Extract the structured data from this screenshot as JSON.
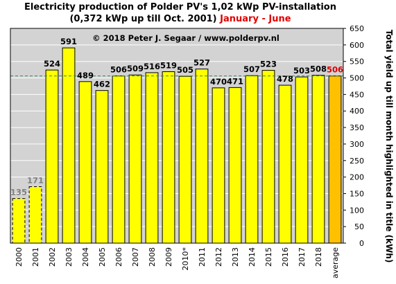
{
  "title": {
    "line1": "Electricity production  of Polder  PV's 1,02 kWp PV-installation",
    "line2_main": "(0,372 kWp up till Oct. 2001)",
    "line2_accent": "January - June"
  },
  "colors": {
    "plot_background": "#d3d3d3",
    "bar_fill": "#ffff00",
    "average_bar_fill": "#ffc000",
    "dim_label": "#808080",
    "average_label": "#e00000",
    "reference_line": "#2e8b57"
  },
  "chart_data": {
    "type": "bar",
    "copyright": "© 2018 Peter J. Segaar / www.polderpv.nl",
    "categories": [
      "2000",
      "2001",
      "2002",
      "2003",
      "2004",
      "2005",
      "2006",
      "2007",
      "2008",
      "2009",
      "2010*",
      "2011",
      "2012",
      "2013",
      "2014",
      "2015",
      "2016",
      "2017",
      "2018",
      "average"
    ],
    "values": [
      135,
      171,
      524,
      591,
      489,
      462,
      506,
      509,
      516,
      519,
      505,
      527,
      470,
      471,
      507,
      523,
      478,
      503,
      508,
      506
    ],
    "value_labels": [
      "135",
      "171",
      "524",
      "591",
      "489",
      "462",
      "506",
      "509",
      "516",
      "519",
      "505",
      "527",
      "470",
      "471",
      "507",
      "523",
      "478",
      "503",
      "508",
      "506"
    ],
    "partial_years": [
      "2000",
      "2001"
    ],
    "highlight_category": "average",
    "reference_line_value": 506,
    "ylabel": "Total yield up till month highlighted in title (kWh)",
    "ylim": [
      0,
      650
    ],
    "yticks": [
      0,
      50,
      100,
      150,
      200,
      250,
      300,
      350,
      400,
      450,
      500,
      550,
      600,
      650
    ],
    "grid": "horizontal",
    "legend": "none"
  }
}
